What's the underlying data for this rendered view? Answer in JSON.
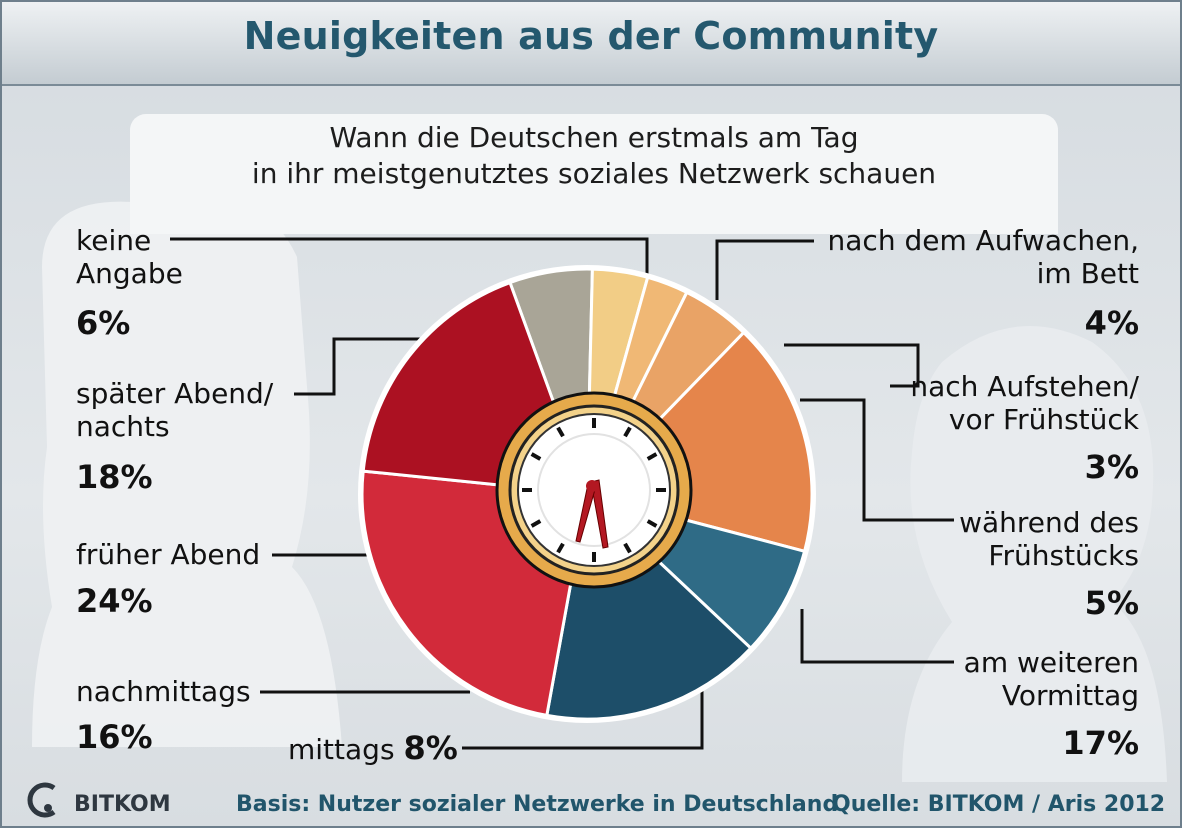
{
  "header": {
    "title": "Neuigkeiten aus der Community"
  },
  "subtitle": {
    "line1": "Wann die Deutschen erstmals am Tag",
    "line2": "in ihr meistgenutztes soziales Netzwerk schauen"
  },
  "footer": {
    "basis": "Basis: Nutzer sozialer Netzwerke in Deutschland",
    "source": "Quelle: BITKOM / Aris 2012",
    "logo": "BITKOM"
  },
  "labels": {
    "keine": {
      "line1": "keine",
      "line2": "Angabe",
      "pct": "6%"
    },
    "spaet": {
      "line1": "später Abend/",
      "line2": "nachts",
      "pct": "18%"
    },
    "frueh": {
      "line1": "früher Abend",
      "pct": "24%"
    },
    "nachm": {
      "line1": "nachmittags",
      "pct": "16%"
    },
    "mittags": {
      "line1": "mittags",
      "pct": "8%"
    },
    "aufwachen": {
      "line1": "nach dem Aufwachen,",
      "line2": "im Bett",
      "pct": "4%"
    },
    "aufstehen": {
      "line1": "nach Aufstehen/",
      "line2": "vor Frühstück",
      "pct": "3%"
    },
    "fruehstueck": {
      "line1": "während des",
      "line2": "Frühstücks",
      "pct": "5%"
    },
    "vormittag": {
      "line1": "am weiteren",
      "line2": "Vormittag",
      "pct": "17%"
    }
  },
  "chart_data": {
    "type": "pie",
    "title": "Wann die Deutschen erstmals am Tag in ihr meistgenutztes soziales Netzwerk schauen",
    "slices": [
      {
        "label": "keine Angabe",
        "value": 6,
        "color": "#a9a597"
      },
      {
        "label": "nach dem Aufwachen, im Bett",
        "value": 4,
        "color": "#f2cd86"
      },
      {
        "label": "nach Aufstehen/vor Frühstück",
        "value": 3,
        "color": "#f0b875"
      },
      {
        "label": "während des Frühstücks",
        "value": 5,
        "color": "#e9a366"
      },
      {
        "label": "am weiteren Vormittag",
        "value": 17,
        "color": "#e5854b"
      },
      {
        "label": "mittags",
        "value": 8,
        "color": "#2f6b86"
      },
      {
        "label": "nachmittags",
        "value": 16,
        "color": "#1d4e69"
      },
      {
        "label": "früher Abend",
        "value": 24,
        "color": "#d22a3a"
      },
      {
        "label": "später Abend/nachts",
        "value": 18,
        "color": "#ac1122"
      }
    ]
  },
  "colors": {
    "title": "#24586e",
    "footer_text": "#21556b"
  }
}
